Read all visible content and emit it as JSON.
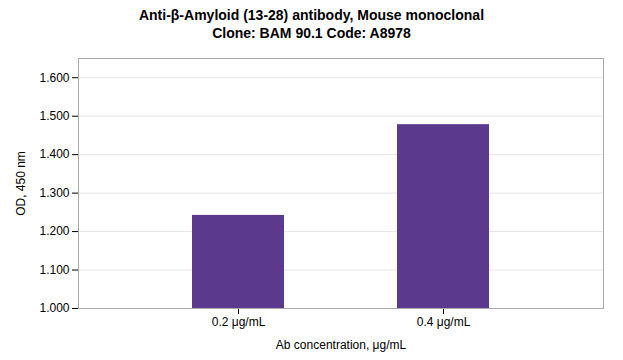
{
  "chart_data": {
    "type": "bar",
    "title": "Anti-β-Amyloid (13-28) antibody, Mouse monoclonal",
    "subtitle": "Clone: BAM 90.1  Code: A8978",
    "categories": [
      "0.2 μg/mL",
      "0.4 μg/mL"
    ],
    "values": [
      1.242,
      1.478
    ],
    "color": "#5B3A8E",
    "xlabel": "Ab concentration, μg/mL",
    "ylabel": "OD, 450 nm",
    "ylim": [
      1.0,
      1.65
    ],
    "yticks": [
      {
        "value": 1.0,
        "label": "1.000"
      },
      {
        "value": 1.1,
        "label": "1.100"
      },
      {
        "value": 1.2,
        "label": "1.200"
      },
      {
        "value": 1.3,
        "label": "1.300"
      },
      {
        "value": 1.4,
        "label": "1.400"
      },
      {
        "value": 1.5,
        "label": "1.500"
      },
      {
        "value": 1.6,
        "label": "1.600"
      }
    ],
    "grid": true
  }
}
